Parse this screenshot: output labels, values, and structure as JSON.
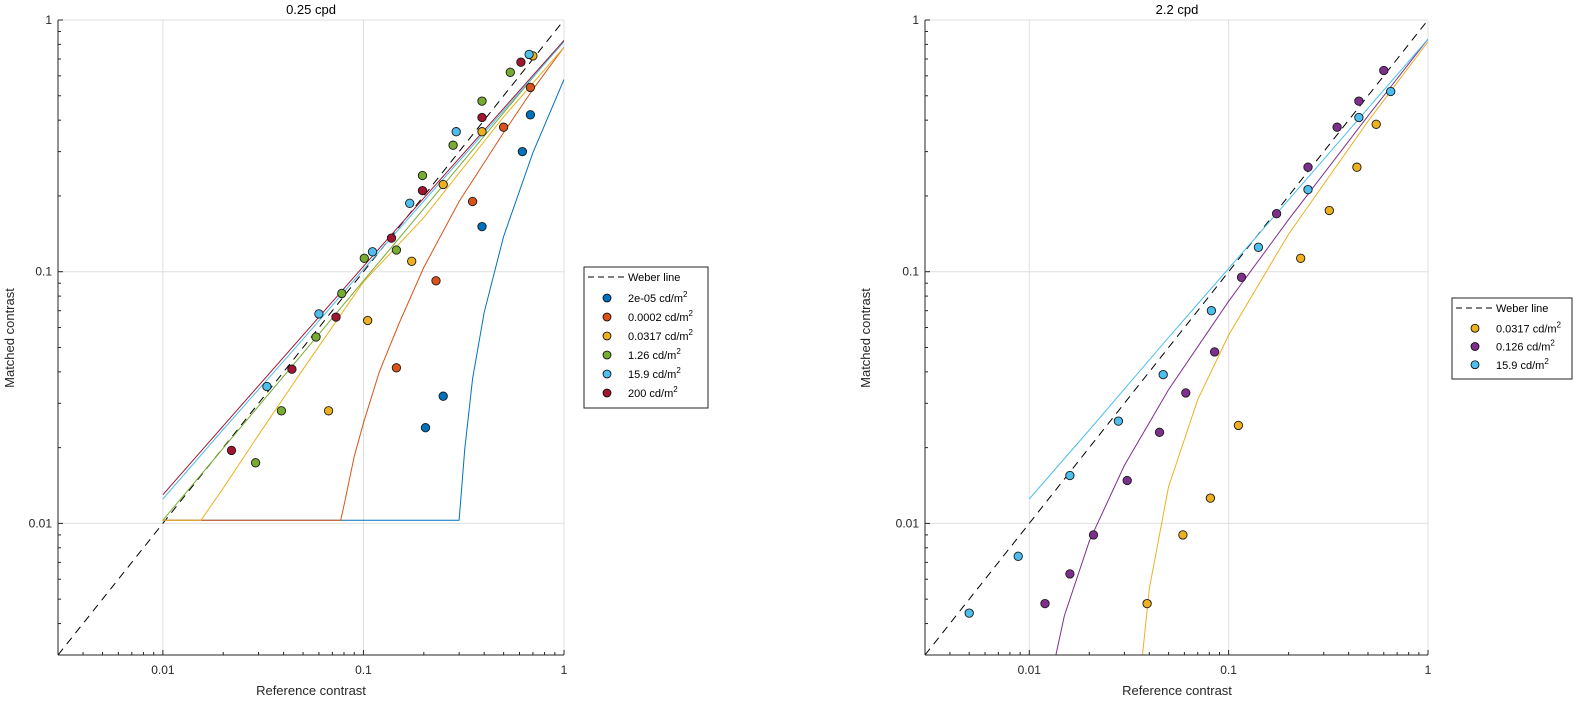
{
  "chart_data": [
    {
      "type": "scatter",
      "title": "0.25 cpd",
      "xlabel": "Reference contrast",
      "ylabel": "Matched contrast",
      "xscale": "log",
      "yscale": "log",
      "xlim": [
        0.003,
        1
      ],
      "ylim": [
        0.003,
        1
      ],
      "xticks": [
        0.01,
        0.1,
        1
      ],
      "xtick_labels": [
        "0.01",
        "0.1",
        "1"
      ],
      "yticks": [
        0.01,
        0.1,
        1
      ],
      "ytick_labels": [
        "0.01",
        "0.1",
        "1"
      ],
      "grid": true,
      "legend_position": "outside-right",
      "reference_line": {
        "name": "Weber line",
        "style": "dashed",
        "color": "#000000"
      },
      "series": [
        {
          "name": "2e-05 cd/m",
          "unit_sup": "2",
          "color": "#0072BD",
          "x": [
            0.68,
            0.62,
            0.39,
            0.25,
            0.204
          ],
          "y": [
            0.42,
            0.3,
            0.151,
            0.032,
            0.024
          ],
          "fit": {
            "x": [
              0.01,
              0.285,
              0.3,
              0.32,
              0.35,
              0.4,
              0.5,
              0.7,
              1.0
            ],
            "y": [
              0.0103,
              0.0103,
              0.0103,
              0.0198,
              0.0376,
              0.069,
              0.138,
              0.297,
              0.58
            ]
          }
        },
        {
          "name": "0.0002 cd/m",
          "unit_sup": "2",
          "color": "#D95319",
          "x": [
            0.68,
            0.5,
            0.35,
            0.23,
            0.146
          ],
          "y": [
            0.54,
            0.375,
            0.19,
            0.092,
            0.0415
          ],
          "fit": {
            "x": [
              0.01,
              0.077,
              0.08,
              0.09,
              0.1,
              0.12,
              0.15,
              0.2,
              0.3,
              0.5,
              0.7,
              1.0
            ],
            "y": [
              0.0103,
              0.0103,
              0.0118,
              0.0185,
              0.025,
              0.04,
              0.062,
              0.104,
              0.19,
              0.357,
              0.53,
              0.78
            ]
          }
        },
        {
          "name": "0.0317 cd/m",
          "unit_sup": "2",
          "color": "#EDB120",
          "x": [
            0.7,
            0.39,
            0.25,
            0.174,
            0.105,
            0.067
          ],
          "y": [
            0.72,
            0.36,
            0.222,
            0.11,
            0.064,
            0.028
          ],
          "fit": {
            "x": [
              0.01,
              0.0155,
              0.02,
              0.03,
              0.05,
              0.1,
              0.2,
              0.5,
              1.0
            ],
            "y": [
              0.0103,
              0.0103,
              0.0138,
              0.0225,
              0.041,
              0.091,
              0.164,
              0.412,
              0.78
            ]
          }
        },
        {
          "name": "1.26 cd/m",
          "unit_sup": "2",
          "color": "#77AC30",
          "x": [
            0.54,
            0.39,
            0.28,
            0.197,
            0.146,
            0.101,
            0.078,
            0.058,
            0.039,
            0.029
          ],
          "y": [
            0.62,
            0.476,
            0.318,
            0.241,
            0.122,
            0.113,
            0.082,
            0.055,
            0.028,
            0.0174
          ],
          "fit": {
            "x": [
              0.01,
              0.02,
              0.05,
              0.1,
              0.2,
              0.5,
              1.0
            ],
            "y": [
              0.0103,
              0.0199,
              0.0475,
              0.092,
              0.178,
              0.428,
              0.83
            ]
          }
        },
        {
          "name": "15.9 cd/m",
          "unit_sup": "2",
          "color": "#4DBEEE",
          "x": [
            0.67,
            0.29,
            0.17,
            0.111,
            0.06,
            0.033
          ],
          "y": [
            0.73,
            0.36,
            0.187,
            0.12,
            0.068,
            0.035
          ],
          "fit": {
            "x": [
              0.01,
              0.02,
              0.05,
              0.1,
              0.2,
              0.5,
              1.0
            ],
            "y": [
              0.0125,
              0.0236,
              0.054,
              0.102,
              0.191,
              0.436,
              0.82
            ]
          }
        },
        {
          "name": "200 cd/m",
          "unit_sup": "2",
          "color": "#A2142F",
          "x": [
            0.61,
            0.39,
            0.197,
            0.138,
            0.073,
            0.044,
            0.022
          ],
          "y": [
            0.68,
            0.41,
            0.21,
            0.136,
            0.066,
            0.041,
            0.0195
          ],
          "fit": {
            "x": [
              0.01,
              0.02,
              0.05,
              0.1,
              0.2,
              0.5,
              1.0
            ],
            "y": [
              0.013,
              0.0244,
              0.056,
              0.105,
              0.196,
              0.445,
              0.83
            ]
          }
        }
      ]
    },
    {
      "type": "scatter",
      "title": "2.2 cpd",
      "xlabel": "Reference contrast",
      "ylabel": "Matched contrast",
      "xscale": "log",
      "yscale": "log",
      "xlim": [
        0.003,
        1
      ],
      "ylim": [
        0.003,
        1
      ],
      "xticks": [
        0.01,
        0.1,
        1
      ],
      "xtick_labels": [
        "0.01",
        "0.1",
        "1"
      ],
      "yticks": [
        0.01,
        0.1,
        1
      ],
      "ytick_labels": [
        "0.01",
        "0.1",
        "1"
      ],
      "grid": true,
      "legend_position": "outside-right",
      "reference_line": {
        "name": "Weber line",
        "style": "dashed",
        "color": "#000000"
      },
      "series": [
        {
          "name": "0.0317 cd/m",
          "unit_sup": "2",
          "color": "#EDB120",
          "x": [
            0.55,
            0.44,
            0.32,
            0.23,
            0.112,
            0.081,
            0.059,
            0.039
          ],
          "y": [
            0.385,
            0.26,
            0.175,
            0.113,
            0.0245,
            0.0126,
            0.009,
            0.0048
          ],
          "fit": {
            "x": [
              0.037,
              0.04,
              0.05,
              0.07,
              0.1,
              0.2,
              0.5,
              1.0
            ],
            "y": [
              0.003,
              0.0055,
              0.014,
              0.031,
              0.056,
              0.141,
              0.396,
              0.82
            ]
          }
        },
        {
          "name": "0.126 cd/m",
          "unit_sup": "2",
          "color": "#7E2F8E",
          "x": [
            0.6,
            0.45,
            0.35,
            0.25,
            0.174,
            0.116,
            0.085,
            0.061,
            0.045,
            0.031,
            0.021,
            0.016,
            0.012
          ],
          "y": [
            0.63,
            0.476,
            0.375,
            0.26,
            0.17,
            0.095,
            0.048,
            0.033,
            0.023,
            0.0148,
            0.009,
            0.0063,
            0.0048
          ],
          "fit": {
            "x": [
              0.0136,
              0.015,
              0.02,
              0.03,
              0.05,
              0.1,
              0.2,
              0.5,
              1.0
            ],
            "y": [
              0.003,
              0.0043,
              0.0085,
              0.017,
              0.034,
              0.0763,
              0.161,
              0.416,
              0.84
            ]
          }
        },
        {
          "name": "15.9 cd/m",
          "unit_sup": "2",
          "color": "#4DBEEE",
          "x": [
            0.65,
            0.45,
            0.25,
            0.141,
            0.082,
            0.047,
            0.028,
            0.016,
            0.0088,
            0.005
          ],
          "y": [
            0.52,
            0.41,
            0.212,
            0.125,
            0.07,
            0.039,
            0.0255,
            0.0155,
            0.0074,
            0.0044
          ],
          "fit": {
            "x": [
              0.01,
              0.02,
              0.05,
              0.1,
              0.2,
              0.5,
              1.0
            ],
            "y": [
              0.0125,
              0.0235,
              0.0548,
              0.103,
              0.193,
              0.446,
              0.84
            ]
          }
        }
      ]
    }
  ]
}
